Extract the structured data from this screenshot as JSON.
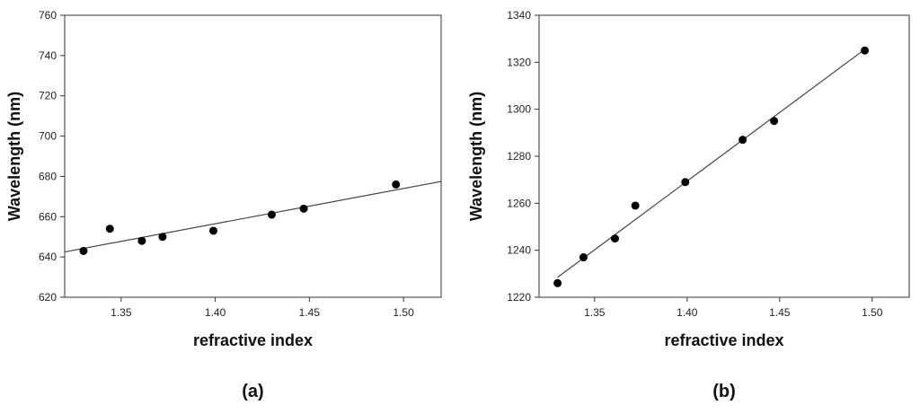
{
  "chart_data": [
    {
      "type": "scatter",
      "panel_label": "(a)",
      "xlabel": "refractive index",
      "ylabel": "Wavelength (nm)",
      "xlim": [
        1.32,
        1.52
      ],
      "ylim": [
        620,
        760
      ],
      "xticks": [
        1.35,
        1.4,
        1.45,
        1.5
      ],
      "xtick_labels": [
        "1.35",
        "1.40",
        "1.45",
        "1.50"
      ],
      "yticks": [
        620,
        640,
        660,
        680,
        700,
        720,
        740,
        760
      ],
      "ytick_labels": [
        "620",
        "640",
        "660",
        "680",
        "700",
        "720",
        "740",
        "760"
      ],
      "grid": false,
      "series": [
        {
          "x": [
            1.33,
            1.344,
            1.361,
            1.372,
            1.399,
            1.43,
            1.447,
            1.496
          ],
          "y": [
            643,
            654,
            648,
            650,
            653,
            661,
            664,
            676
          ]
        }
      ],
      "fit_line": {
        "x": [
          1.32,
          1.52
        ],
        "y": [
          642.5,
          677.5
        ]
      }
    },
    {
      "type": "scatter",
      "panel_label": "(b)",
      "xlabel": "refractive index",
      "ylabel": "Wavelength (nm)",
      "xlim": [
        1.32,
        1.52
      ],
      "ylim": [
        1220,
        1340
      ],
      "xticks": [
        1.35,
        1.4,
        1.45,
        1.5
      ],
      "xtick_labels": [
        "1.35",
        "1.40",
        "1.45",
        "1.50"
      ],
      "yticks": [
        1220,
        1240,
        1260,
        1280,
        1300,
        1320,
        1340
      ],
      "ytick_labels": [
        "1220",
        "1240",
        "1260",
        "1280",
        "1300",
        "1320",
        "1340"
      ],
      "grid": false,
      "series": [
        {
          "x": [
            1.33,
            1.344,
            1.361,
            1.372,
            1.399,
            1.43,
            1.447,
            1.496
          ],
          "y": [
            1226,
            1237,
            1245,
            1259,
            1269,
            1287,
            1295,
            1325
          ]
        }
      ],
      "fit_line": {
        "x": [
          1.33,
          1.496
        ],
        "y": [
          1228.5,
          1325.5
        ]
      }
    }
  ]
}
